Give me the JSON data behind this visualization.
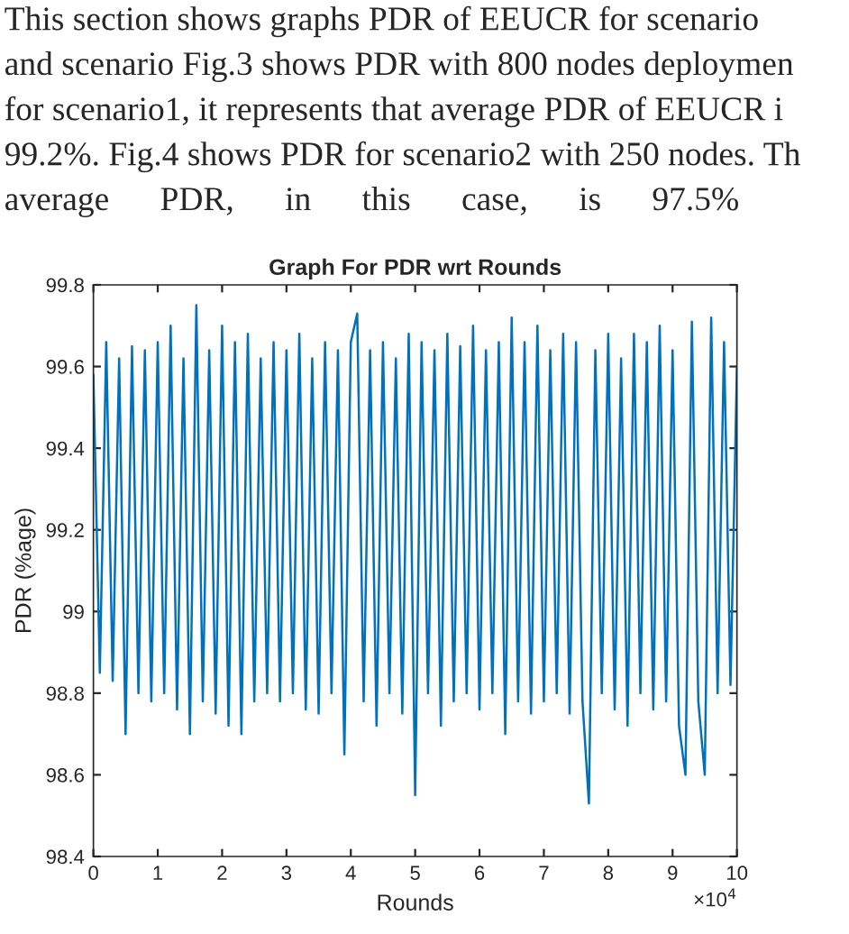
{
  "chart_data": {
    "type": "line",
    "title": "Graph For PDR wrt Rounds",
    "xlabel": "Rounds",
    "ylabel": "PDR (%age)",
    "annotations": [
      "This section shows graphs PDR of EEUCR for scenario",
      "and scenario Fig.3 shows PDR with 800 nodes deploymen",
      "for scenario1, it represents that average PDR of EEUCR i",
      "99.2%. Fig.4 shows PDR for scenario2 with 250 nodes. Th",
      "average      PDR,      in      this      case,      is      97.5%",
      "×10$^{4}$"
    ],
    "x": [
      0,
      0.1,
      0.2,
      0.3,
      0.4,
      0.5,
      0.6,
      0.7,
      0.8,
      0.9,
      1,
      1.1,
      1.2,
      1.3,
      1.4,
      1.5,
      1.6,
      1.7,
      1.8,
      1.9,
      2,
      2.1,
      2.2,
      2.3,
      2.4,
      2.5,
      2.6,
      2.7,
      2.8,
      2.9,
      3,
      3.1,
      3.2,
      3.3,
      3.4,
      3.5,
      3.6,
      3.7,
      3.8,
      3.9,
      4,
      4.1,
      4.2,
      4.3,
      4.4,
      4.5,
      4.6,
      4.7,
      4.8,
      4.9,
      5,
      5.1,
      5.2,
      5.3,
      5.4,
      5.5,
      5.6,
      5.7,
      5.8,
      5.9,
      6,
      6.1,
      6.2,
      6.3,
      6.4,
      6.5,
      6.6,
      6.7,
      6.8,
      6.9,
      7,
      7.1,
      7.2,
      7.3,
      7.4,
      7.5,
      7.6,
      7.7,
      7.8,
      7.9,
      8,
      8.1,
      8.2,
      8.3,
      8.4,
      8.5,
      8.6,
      8.7,
      8.8,
      8.9,
      9,
      9.1,
      9.2,
      9.3,
      9.4,
      9.5,
      9.6,
      9.7,
      9.8,
      9.9,
      10
    ],
    "series": [
      {
        "color": "#0072bd",
        "values": [
          99.58,
          98.85,
          99.66,
          98.83,
          99.62,
          98.7,
          99.65,
          98.8,
          99.64,
          98.78,
          99.66,
          98.8,
          99.7,
          98.76,
          99.62,
          98.7,
          99.75,
          98.78,
          99.64,
          98.75,
          99.7,
          98.72,
          99.66,
          98.7,
          99.68,
          98.78,
          99.62,
          98.8,
          99.66,
          98.78,
          99.64,
          98.8,
          99.68,
          98.76,
          99.62,
          98.75,
          99.66,
          98.8,
          99.64,
          98.65,
          99.66,
          99.73,
          98.78,
          99.64,
          98.72,
          99.66,
          98.8,
          99.62,
          98.75,
          99.68,
          98.55,
          99.66,
          98.8,
          99.64,
          98.72,
          99.68,
          98.78,
          99.65,
          98.8,
          99.7,
          98.76,
          99.64,
          98.8,
          99.66,
          98.7,
          99.72,
          98.78,
          99.66,
          98.75,
          99.7,
          98.78,
          99.64,
          98.8,
          99.68,
          98.75,
          99.66,
          98.78,
          98.53,
          99.64,
          98.8,
          99.68,
          98.76,
          99.62,
          98.72,
          99.68,
          98.8,
          99.66,
          98.76,
          99.7,
          98.78,
          99.64,
          98.72,
          98.6,
          99.71,
          98.78,
          98.6,
          99.72,
          98.8,
          99.66,
          98.82,
          99.6
        ]
      }
    ],
    "xlim": [
      0,
      10
    ],
    "xticks": [
      0,
      1,
      2,
      3,
      4,
      5,
      6,
      7,
      8,
      9,
      10
    ],
    "ylim": [
      98.4,
      99.8
    ],
    "yticks": [
      98.4,
      98.6,
      98.8,
      99,
      99.2,
      99.4,
      99.6,
      99.8
    ],
    "grid": false,
    "legend": false
  }
}
